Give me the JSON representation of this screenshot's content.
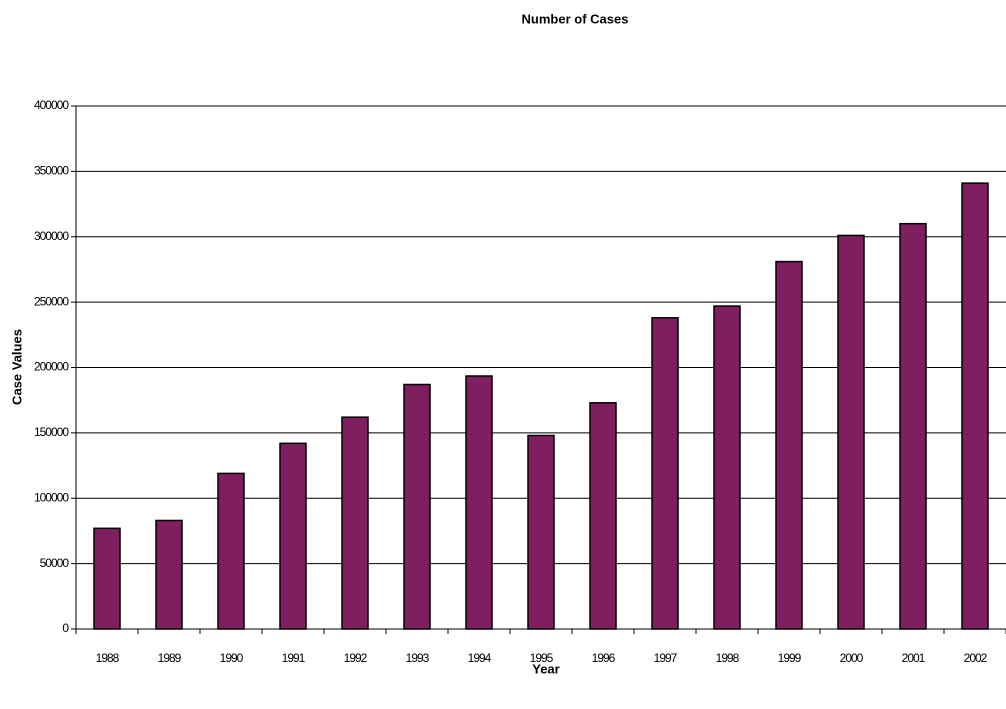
{
  "chart_data": {
    "type": "bar",
    "title": "Number of Cases",
    "x_label": "Year",
    "y_label": "Case Values",
    "categories": [
      "1988",
      "1989",
      "1990",
      "1991",
      "1992",
      "1993",
      "1994",
      "1995",
      "1996",
      "1997",
      "1998",
      "1999",
      "2000",
      "2001",
      "2002"
    ],
    "values": [
      77000,
      83000,
      119000,
      142000,
      162000,
      187000,
      193500,
      148000,
      173000,
      238000,
      247000,
      281000,
      301000,
      310000,
      341000
    ],
    "color": "#7f1f5f",
    "ylim": [
      0,
      400000
    ],
    "yticks": [
      0,
      50000,
      100000,
      150000,
      200000,
      250000,
      300000,
      350000,
      400000
    ],
    "grid": true
  }
}
